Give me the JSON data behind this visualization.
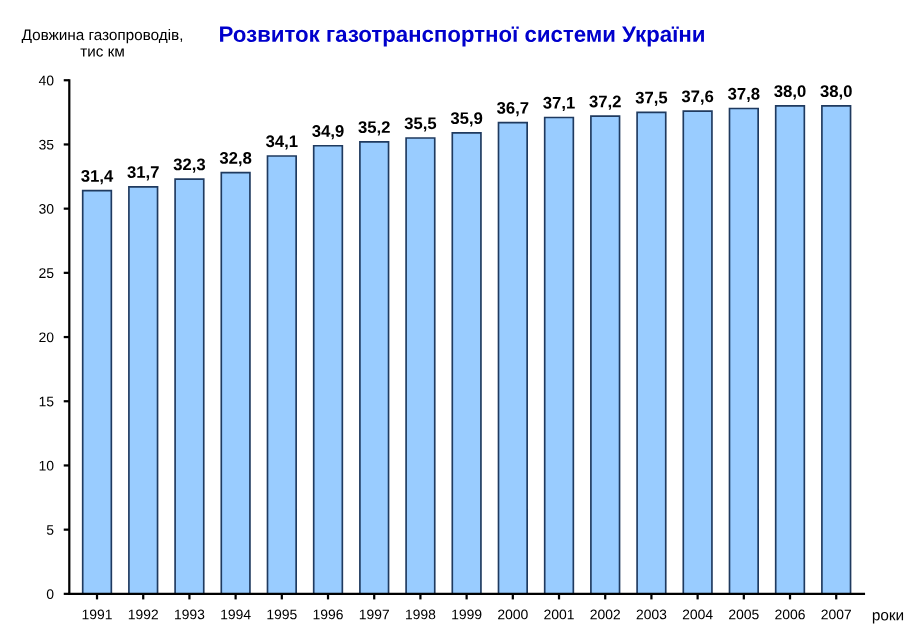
{
  "chart_data": {
    "type": "bar",
    "title": "Розвиток газотранспортної системи України",
    "ylabel": "Довжина газопроводів,\nтис км",
    "xlabel": "роки",
    "categories": [
      "1991",
      "1992",
      "1993",
      "1994",
      "1995",
      "1996",
      "1997",
      "1998",
      "1999",
      "2000",
      "2001",
      "2002",
      "2003",
      "2004",
      "2005",
      "2006",
      "2007"
    ],
    "values": [
      31.4,
      31.7,
      32.3,
      32.8,
      34.1,
      34.9,
      35.2,
      35.5,
      35.9,
      36.7,
      37.1,
      37.2,
      37.5,
      37.6,
      37.8,
      38.0,
      38.0
    ],
    "value_labels": [
      "31,4",
      "31,7",
      "32,3",
      "32,8",
      "34,1",
      "34,9",
      "35,2",
      "35,5",
      "35,9",
      "36,7",
      "37,1",
      "37,2",
      "37,5",
      "37,6",
      "37,8",
      "38,0",
      "38,0"
    ],
    "color": "#99ccff",
    "ylim": [
      0,
      40
    ],
    "yticks": [
      0,
      5,
      10,
      15,
      20,
      25,
      30,
      35,
      40
    ],
    "grid": false
  }
}
